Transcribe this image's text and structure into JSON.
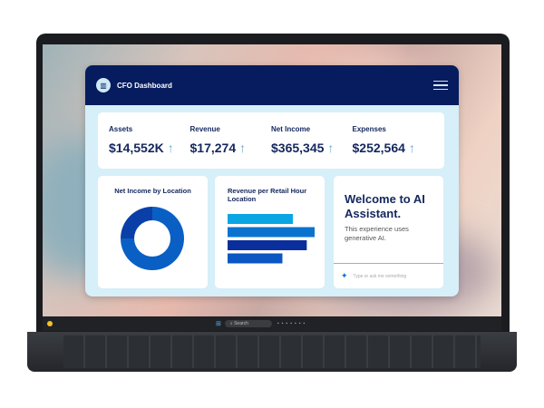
{
  "header": {
    "title": "CFO Dashboard",
    "logo_icon": "chart-icon",
    "menu_icon": "hamburger-icon"
  },
  "stats": [
    {
      "label": "Assets",
      "value": "$14,552K",
      "trend": "↑"
    },
    {
      "label": "Revenue",
      "value": "$17,274",
      "trend": "↑"
    },
    {
      "label": "Net Income",
      "value": "$365,345",
      "trend": "↑"
    },
    {
      "label": "Expenses",
      "value": "$252,564",
      "trend": "↑"
    }
  ],
  "cards": {
    "donut_title": "Net Income by Location",
    "bar_title": "Revenue per Retail Hour Location"
  },
  "ai": {
    "title": "Welcome to AI Assistant.",
    "subtitle": "This experience uses generative AI.",
    "placeholder": "Type or ask me something"
  },
  "taskbar": {
    "search": "Search"
  },
  "colors": {
    "navy": "#061c5e",
    "accent": "#0a5fc4",
    "panel": "#d6eff8"
  },
  "chart_data": [
    {
      "type": "pie",
      "title": "Net Income by Location",
      "donut": true,
      "values": [
        75,
        25
      ],
      "colors": [
        "#0a5fc4",
        "#0b3fa8"
      ]
    },
    {
      "type": "bar",
      "title": "Revenue per Retail Hour Location",
      "orientation": "horizontal",
      "values": [
        75,
        100,
        91,
        63
      ],
      "colors": [
        "#0aa6e3",
        "#0a73cf",
        "#0a2f9c",
        "#0a56c2"
      ]
    }
  ]
}
